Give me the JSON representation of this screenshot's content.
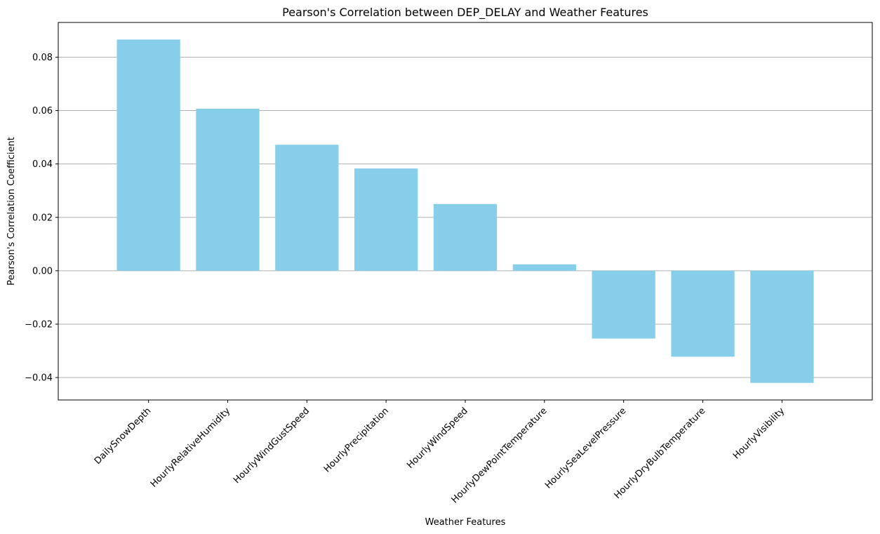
{
  "chart_data": {
    "type": "bar",
    "title": "Pearson's Correlation between DEP_DELAY and Weather Features",
    "xlabel": "Weather Features",
    "ylabel": "Pearson's Correlation Coefficient",
    "categories": [
      "DailySnowDepth",
      "HourlyRelativeHumidity",
      "HourlyWindGustSpeed",
      "HourlyPrecipitation",
      "HourlyWindSpeed",
      "HourlyDewPointTemperature",
      "HourlySeaLevelPressure",
      "HourlyDryBulbTemperature",
      "HourlyVisibility"
    ],
    "values": [
      0.0866,
      0.0607,
      0.0472,
      0.0383,
      0.025,
      0.0024,
      -0.0254,
      -0.0322,
      -0.042
    ],
    "ylim": [
      -0.0484,
      0.093
    ],
    "yticks": [
      -0.04,
      -0.02,
      0.0,
      0.02,
      0.04,
      0.06,
      0.08
    ],
    "ytick_labels": [
      "−0.04",
      "−0.02",
      "0.00",
      "0.02",
      "0.04",
      "0.06",
      "0.08"
    ],
    "grid": "y",
    "bar_color": "#87CEEB"
  }
}
